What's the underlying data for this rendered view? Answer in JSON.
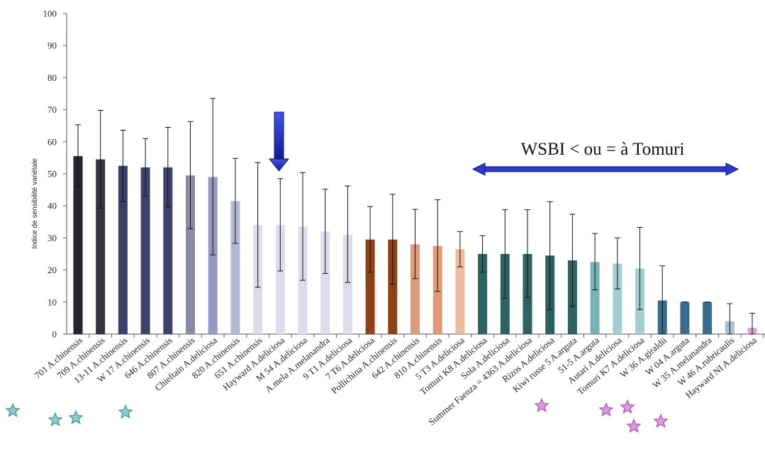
{
  "chart_data": {
    "type": "bar",
    "ylabel": "Indice de sensibilité variétale",
    "ylim": [
      0,
      100
    ],
    "yticks": [
      0,
      10,
      20,
      30,
      40,
      50,
      60,
      70,
      80,
      90,
      100
    ],
    "grid": false,
    "legend": "none",
    "categories": [
      "701 A.chinensis",
      "709 A.chinensis",
      "13-11 A.chinensis",
      "W 17 A.chinensis",
      "646 A.chinensis",
      "807 A.chinensis",
      "Chieftain A.deliciosa",
      "820 A.chinensis",
      "651 A.chinensis",
      "Hayward A.deliciosa",
      "M 54 A.deliciosa",
      "A.mela A.melanandra",
      "9 T1 A.deliciosa",
      "7 T6 A.deliciosa",
      "Pollichina A.chinensis",
      "642 A.chinensis",
      "810 A.chinensis",
      "5 T3 A.deliciosa",
      "Tomuri K8 A.deliciosa",
      "Sola A.deliciosa",
      "Summer Faenza = 4363 A.deliciosa",
      "Rizos A.deliciosa",
      "Kiwi russe 5 A.arguta",
      "51-5 A.arguta",
      "Autari A.deliciosa",
      "Tomuri K7 A.deliciosa",
      "W 36 A.giraldii",
      "W 04 A.arguta",
      "W 35 A.melanandra",
      "W 46 A.rubricaulis",
      "Hayward NI A.deliciosa"
    ],
    "values": [
      55.5,
      54.5,
      52.5,
      52,
      52,
      49.5,
      49,
      41.5,
      34,
      34,
      33.5,
      32,
      31,
      29.5,
      29.5,
      28,
      27.5,
      26.5,
      25,
      25,
      25,
      24.5,
      23,
      22.5,
      22,
      20.5,
      10.5,
      10,
      10,
      4,
      2
    ],
    "err_high": [
      65.3,
      69.8,
      63.6,
      61,
      64.5,
      66.3,
      73.5,
      54.8,
      53.5,
      48.5,
      50.4,
      45.2,
      46.2,
      39.8,
      43.6,
      38.9,
      41.9,
      32,
      30.7,
      38.8,
      38.8,
      41.3,
      37.4,
      31.4,
      30,
      33.3,
      21.3,
      10,
      10,
      9.5,
      6.5
    ],
    "err_low": [
      45.8,
      39.3,
      41.4,
      43,
      39.7,
      32.9,
      24.7,
      28.3,
      14.6,
      19.7,
      16.8,
      18.9,
      16.1,
      19.3,
      15.5,
      17.3,
      13.3,
      21,
      19.3,
      11.2,
      11.4,
      7.7,
      8.6,
      13.8,
      14.1,
      7.7,
      0,
      10,
      10,
      0,
      0
    ],
    "bar_colors": [
      "#24232f",
      "#32343f",
      "#3b3f68",
      "#3e416c",
      "#3d416c",
      "#888ca4",
      "#9598c4",
      "#b4b6d6",
      "#dcdced",
      "#dcdced",
      "#dcdced",
      "#dcdced",
      "#dcdced",
      "#8e4218",
      "#8e4218",
      "#df9a78",
      "#df9a78",
      "#ecbc9f",
      "#2e6262",
      "#2e6262",
      "#2e6262",
      "#2e6262",
      "#2e6262",
      "#78b2b7",
      "#a2ced0",
      "#a2ced0",
      "#3a6c8b",
      "#3a6c8b",
      "#3a6c8b",
      "#a6c1d4",
      "#d8a7cf"
    ],
    "annotations": [
      {
        "text": "WSBI < ou = à Tomuri"
      }
    ],
    "markers": {
      "teal_stars": [
        "701 A.chinensis",
        "709 A.chinensis",
        "13-11 A.chinensis",
        "807 A.chinensis"
      ],
      "purple_stars": [
        "Kiwi russe 5 A.arguta",
        "Tomuri K7 A.deliciosa",
        "W 36 A.giraldii",
        "W 04 A.arguta",
        "W 35 A.melanandra"
      ],
      "teal_color": "#3e9a9c",
      "purple_color": "#b452b4",
      "arrow_color": "#1f2fc8",
      "highlight": "Hayward A.deliciosa"
    }
  }
}
